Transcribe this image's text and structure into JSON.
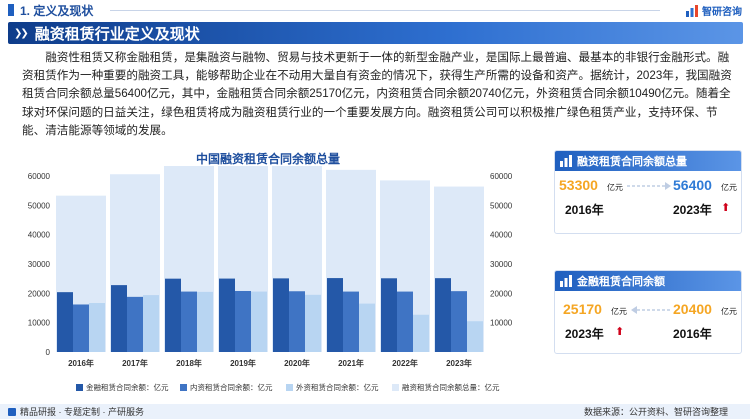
{
  "header": {
    "section_label": "1. 定义及现状",
    "logo_text": "智研咨询"
  },
  "title": "融资租赁行业定义及现状",
  "body_text": "融资性租赁又称金融租赁，是集融资与融物、贸易与技术更新于一体的新型金融产业，是国际上最普遍、最基本的非银行金融形式。融资租赁作为一种重要的融资工具，能够帮助企业在不动用大量自有资金的情况下，获得生产所需的设备和资产。据统计，2023年，我国融资租赁合同余额总量56400亿元，其中，金融租赁合同余额25170亿元，内资租赁合同余额20740亿元，外资租赁合同余额10490亿元。随着全球对环保问题的日益关注，绿色租赁将成为融资租赁行业的一个重要发展方向。融资租赁公司可以积极推广绿色租赁产业，支持环保、节能、清洁能源等领域的发展。",
  "chart_data": {
    "type": "bar",
    "title": "中国融资租赁合同余额总量",
    "categories": [
      "2016年",
      "2017年",
      "2018年",
      "2019年",
      "2020年",
      "2021年",
      "2022年",
      "2023年"
    ],
    "y_ticks": [
      "0",
      "10000",
      "20000",
      "30000",
      "40000",
      "50000",
      "60000"
    ],
    "ylim": [
      0,
      60000
    ],
    "grid": false,
    "legend_position": "bottom",
    "series": [
      {
        "name": "金融租赁合同余额：亿元",
        "axis": "left",
        "color": "#2458a8",
        "values": [
          20400,
          22800,
          25000,
          25030,
          25100,
          25200,
          25130,
          25170
        ]
      },
      {
        "name": "内资租赁合同余额：亿元",
        "axis": "left",
        "color": "#3f74c4",
        "values": [
          16200,
          18800,
          20600,
          20800,
          20710,
          20600,
          20600,
          20740
        ]
      },
      {
        "name": "外资租赁合同余额：亿元",
        "axis": "left",
        "color": "#b8d5f2",
        "values": [
          16700,
          19400,
          20500,
          20600,
          19500,
          16500,
          12700,
          10490
        ]
      },
      {
        "name": "融资租赁合同余额总量：亿元",
        "axis": "right",
        "color": "#dde9f8",
        "values": [
          53300,
          60600,
          66500,
          66540,
          65040,
          62100,
          58500,
          56400
        ]
      }
    ]
  },
  "cards": [
    {
      "title": "融资租赁合同余额总量",
      "left_value": "53300",
      "left_unit": "亿元",
      "left_year": "2016年",
      "right_value": "56400",
      "right_unit": "亿元",
      "right_year": "2023年",
      "arrow": "up-arrow"
    },
    {
      "title": "金融租赁合同余额",
      "left_value": "25170",
      "left_unit": "亿元",
      "left_year": "2023年",
      "right_value": "20400",
      "right_unit": "亿元",
      "right_year": "2016年",
      "arrow": "up-arrow"
    }
  ],
  "footer": {
    "left": "精品研报 · 专题定制 · 产研服务",
    "right": "数据来源：公开资料、智研咨询整理"
  },
  "colors": {
    "brand": "#1f5fbf",
    "accent_orange": "#f5a623",
    "arrow_red": "#d0021b"
  }
}
